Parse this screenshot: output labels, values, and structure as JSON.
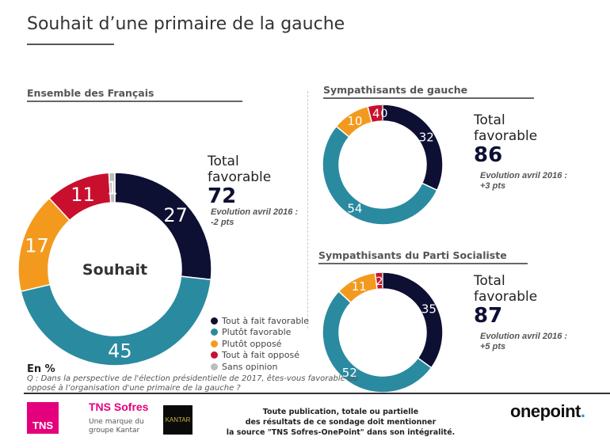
{
  "page": {
    "title": "Souhait d’une primaire de la gauche"
  },
  "colors": {
    "tout_a_fait_favorable": "#0d0f33",
    "plutot_favorable": "#2a8aa0",
    "plutot_oppose": "#f39a1e",
    "tout_a_fait_oppose": "#c8102e",
    "sans_opinion": "#bdbdbd"
  },
  "legend": {
    "items": [
      {
        "label": "Tout à fait favorable",
        "color": "#0d0f33"
      },
      {
        "label": "Plutôt favorable",
        "color": "#2a8aa0"
      },
      {
        "label": "Plutôt opposé",
        "color": "#f39a1e"
      },
      {
        "label": "Tout à fait opposé",
        "color": "#c8102e"
      },
      {
        "label": "Sans opinion",
        "color": "#bdbdbd"
      }
    ]
  },
  "chart_data": [
    {
      "type": "pie",
      "variant": "donut",
      "title": "Ensemble des Français",
      "center_label": "Souhait",
      "categories": [
        "Tout à fait favorable",
        "Plutôt favorable",
        "Plutôt opposé",
        "Tout à fait opposé",
        "Sans opinion"
      ],
      "values": [
        27,
        45,
        17,
        11,
        1
      ],
      "data_labels": [
        "27",
        "45",
        "17",
        "11",
        "1"
      ],
      "total_label": "Total favorable",
      "total_value": "72",
      "evolution_label": "Evolution avril 2016 :",
      "evolution_value": "-2 pts",
      "unit": "En %"
    },
    {
      "type": "pie",
      "variant": "donut",
      "title": "Sympathisants de gauche",
      "categories": [
        "Tout à fait favorable",
        "Plutôt favorable",
        "Plutôt opposé",
        "Tout à fait opposé",
        "Sans opinion"
      ],
      "values": [
        32,
        54,
        10,
        4,
        0
      ],
      "data_labels": [
        "32",
        "54",
        "10",
        "4",
        "0"
      ],
      "total_label": "Total favorable",
      "total_value": "86",
      "evolution_label": "Evolution avril 2016 :",
      "evolution_value": "+3 pts"
    },
    {
      "type": "pie",
      "variant": "donut",
      "title": "Sympathisants du Parti Socialiste",
      "categories": [
        "Tout à fait favorable",
        "Plutôt favorable",
        "Plutôt opposé",
        "Tout à fait opposé",
        "Sans opinion"
      ],
      "values": [
        35,
        52,
        11,
        2,
        0
      ],
      "data_labels": [
        "35",
        "52",
        "11",
        "2",
        ""
      ],
      "total_label": "Total favorable",
      "total_value": "87",
      "evolution_label": "Evolution avril 2016 :",
      "evolution_value": "+5 pts"
    }
  ],
  "notes": {
    "unit": "En %",
    "question": "Q : Dans la perspective de l'élection présidentielle de 2017, êtes-vous favorable ou opposé à l’organisation d'une primaire de la gauche ?"
  },
  "footer": {
    "tns_logo": "TNS",
    "tns_brand": "TNS Sofres",
    "tns_sub_line1": "Une marque du",
    "tns_sub_line2": "groupe Kantar",
    "kantar_logo": "KANTAR",
    "disclaimer_line1": "Toute publication, totale ou partielle",
    "disclaimer_line2": "des résultats de ce sondage doit mentionner",
    "disclaimer_line3": "la source \"TNS Sofres-OnePoint\"  dans son intégralité.",
    "onepoint_logo": "onepoint",
    "onepoint_dot": "."
  }
}
